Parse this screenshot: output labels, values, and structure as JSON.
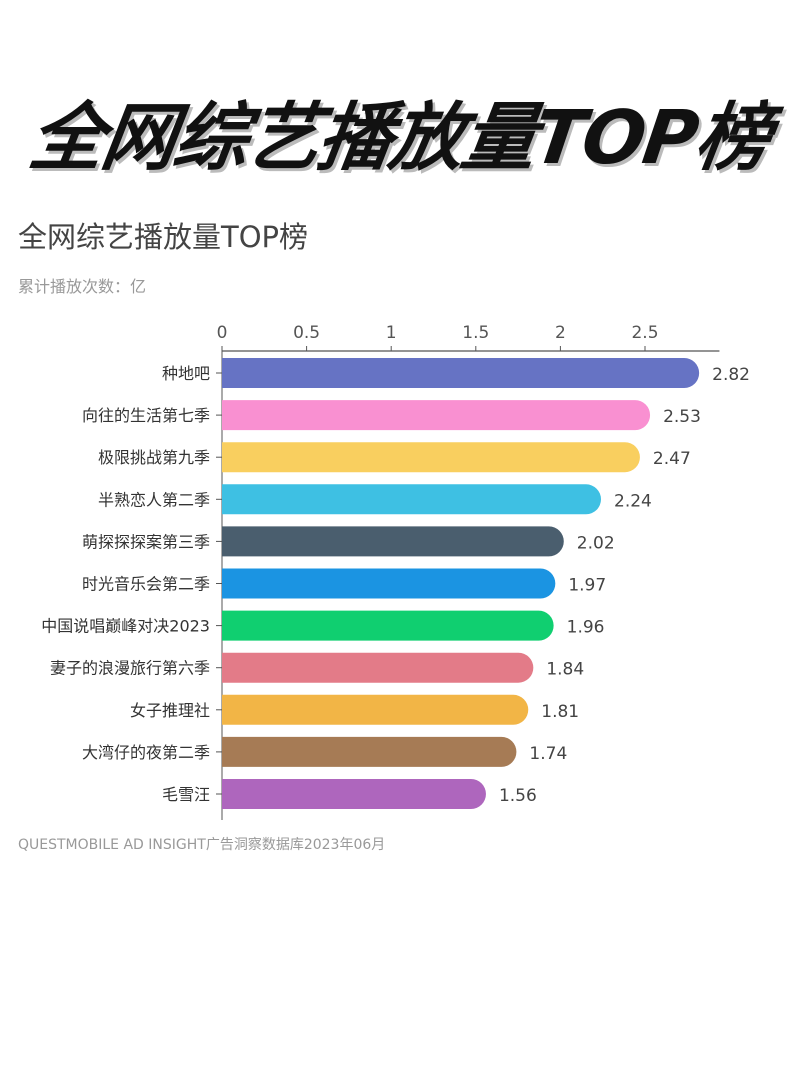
{
  "banner": "全网综艺播放量TOP榜",
  "chart_data": {
    "type": "bar",
    "orientation": "horizontal",
    "title": "全网综艺播放量TOP榜",
    "subtitle": "累计播放次数：亿",
    "source": "QUESTMOBILE AD INSIGHT广告洞察数据库2023年06月",
    "xlim": [
      0,
      2.94
    ],
    "xticks": [
      "0",
      "0.5",
      "1",
      "1.5",
      "2",
      "2.5"
    ],
    "xaxis_position": "top",
    "grid": false,
    "categories": [
      "种地吧",
      "向往的生活第七季",
      "极限挑战第九季",
      "半熟恋人第二季",
      "萌探探探案第三季",
      "时光音乐会第二季",
      "中国说唱巅峰对决2023",
      "妻子的浪漫旅行第六季",
      "女子推理社",
      "大湾仔的夜第二季",
      "毛雪汪"
    ],
    "values": [
      2.82,
      2.53,
      2.47,
      2.24,
      2.02,
      1.97,
      1.96,
      1.84,
      1.81,
      1.74,
      1.56
    ],
    "data_labels": [
      "2.82",
      "2.53",
      "2.47",
      "2.24",
      "2.02",
      "1.97",
      "1.96",
      "1.84",
      "1.81",
      "1.74",
      "1.56"
    ],
    "colors": [
      "#6673c4",
      "#f990d1",
      "#f9cf5f",
      "#3ec0e3",
      "#4a5e6e",
      "#1b94e2",
      "#10cf70",
      "#e37b88",
      "#f2b546",
      "#a67b55",
      "#ae66bd"
    ]
  }
}
